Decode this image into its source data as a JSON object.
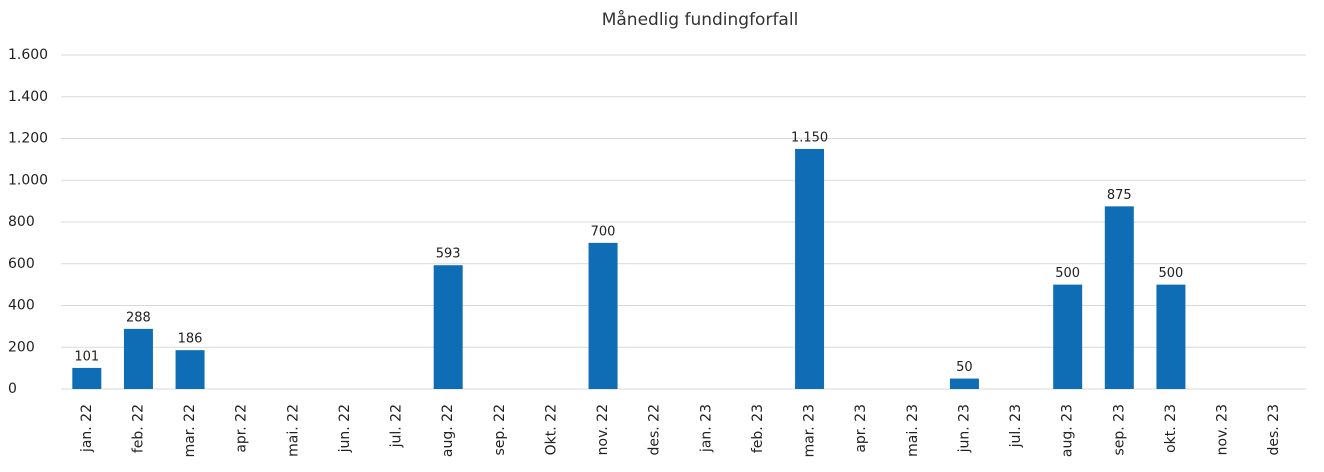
{
  "chart_data": {
    "type": "bar",
    "title": "Månedlig fundingforfall",
    "categories": [
      "jan. 22",
      "feb. 22",
      "mar. 22",
      "apr. 22",
      "mai. 22",
      "jun. 22",
      "jul. 22",
      "aug. 22",
      "sep. 22",
      "Okt. 22",
      "nov. 22",
      "des. 22",
      "jan. 23",
      "feb. 23",
      "mar. 23",
      "apr. 23",
      "mai. 23",
      "jun. 23",
      "jul. 23",
      "aug. 23",
      "sep. 23",
      "okt. 23",
      "nov. 23",
      "des. 23"
    ],
    "values": [
      101,
      288,
      186,
      null,
      null,
      null,
      null,
      593,
      null,
      null,
      700,
      null,
      null,
      null,
      1150,
      null,
      null,
      50,
      null,
      500,
      875,
      500,
      null,
      null
    ],
    "value_labels": [
      "101",
      "288",
      "186",
      null,
      null,
      null,
      null,
      "593",
      null,
      null,
      "700",
      null,
      null,
      null,
      "1.150",
      null,
      null,
      "50",
      null,
      "500",
      "875",
      "500",
      null,
      null
    ],
    "color": "#0f6db5",
    "ylim": [
      0,
      1600
    ],
    "yticks": [
      0,
      200,
      400,
      600,
      800,
      {
        "value": 1000,
        "label": "1.000"
      },
      {
        "value": 1200,
        "label": "1.200"
      },
      {
        "value": 1400,
        "label": "1.400"
      },
      {
        "value": 1600,
        "label": "1.600"
      }
    ],
    "grid": true
  }
}
